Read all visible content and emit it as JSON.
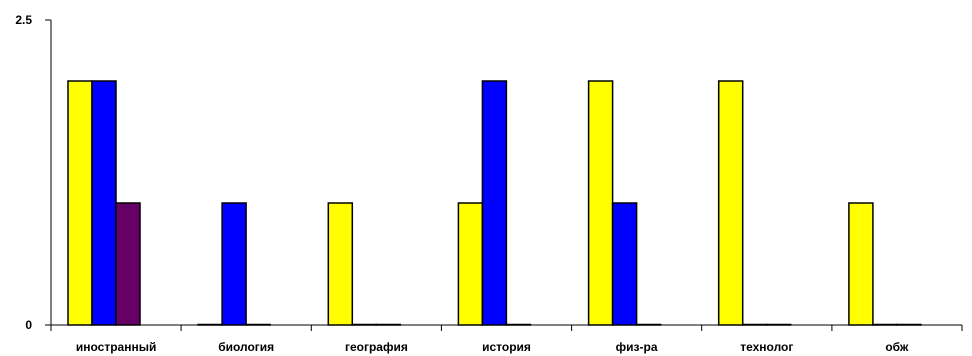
{
  "chart_data": {
    "type": "bar",
    "categories": [
      "иностранный",
      "биология",
      "география",
      "история",
      "физ-ра",
      "технолог",
      "обж"
    ],
    "series": [
      {
        "color": "#ffff00",
        "values": [
          2,
          0,
          1,
          1,
          2,
          2,
          1
        ]
      },
      {
        "color": "#0000ff",
        "values": [
          2,
          1,
          0,
          2,
          1,
          0,
          0
        ]
      },
      {
        "color": "#660066",
        "values": [
          1,
          0,
          0,
          0,
          0,
          0,
          0
        ]
      }
    ],
    "ylim": [
      0,
      2.5
    ],
    "y_ticks": [
      "0",
      "2.5"
    ],
    "grid": false,
    "legend": "none"
  }
}
